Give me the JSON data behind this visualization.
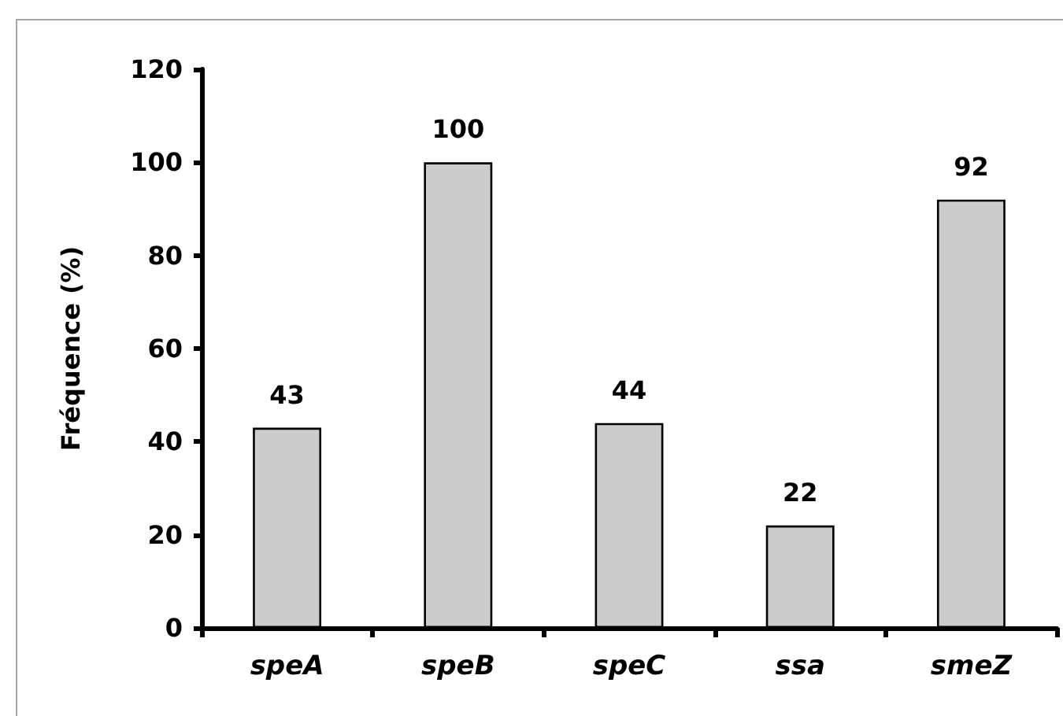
{
  "chart_data": {
    "type": "bar",
    "categories": [
      "speA",
      "speB",
      "speC",
      "ssa",
      "smeZ"
    ],
    "values": [
      43,
      100,
      44,
      22,
      92
    ],
    "color": "#cccccc",
    "ylabel": "Fréquence (%)",
    "ylim": [
      0,
      120
    ],
    "yticks": [
      0,
      20,
      40,
      60,
      80,
      100,
      120
    ],
    "data_labels": true
  }
}
